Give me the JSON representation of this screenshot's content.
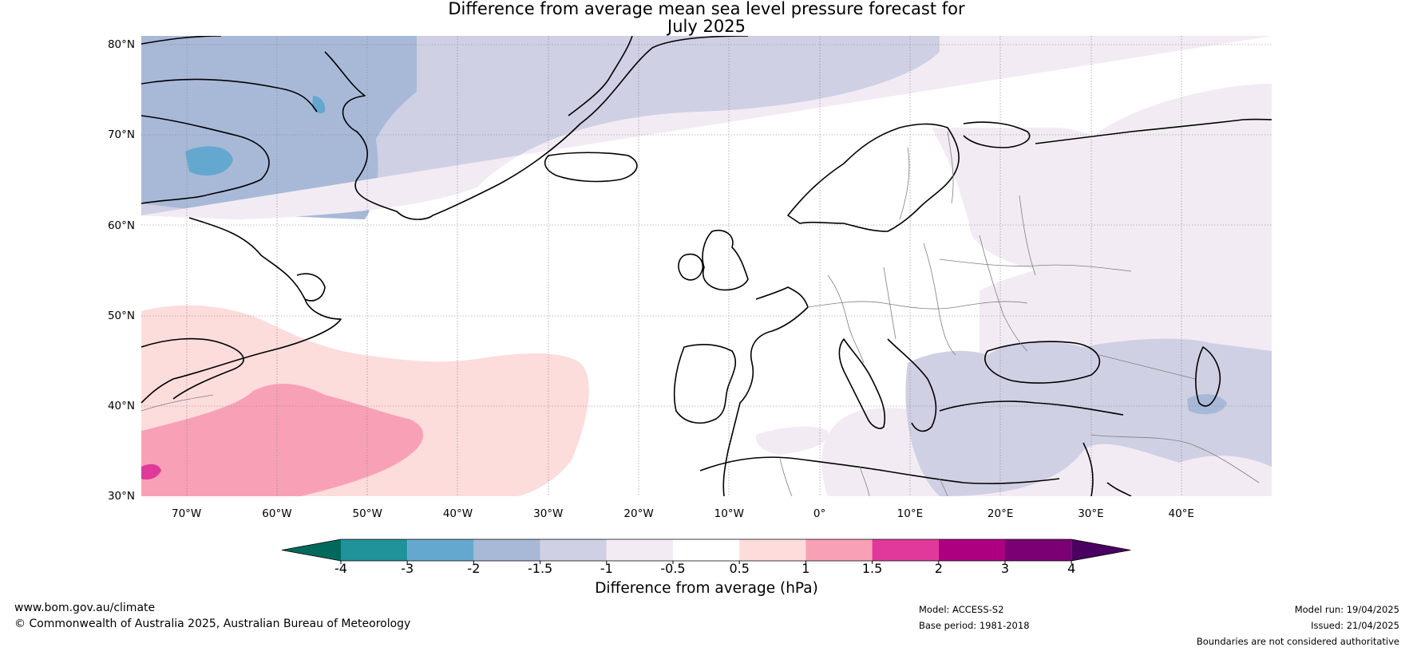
{
  "title": {
    "line1": "Difference from average mean sea level pressure forecast for",
    "line2": "July 2025"
  },
  "map": {
    "type": "forecast anomaly map",
    "region": "North Atlantic and Europe",
    "lon_range": [
      -75,
      50
    ],
    "lat_range": [
      30,
      81
    ],
    "lat_ticks": [
      {
        "value": 80,
        "label": "80°N"
      },
      {
        "value": 70,
        "label": "70°N"
      },
      {
        "value": 60,
        "label": "60°N"
      },
      {
        "value": 50,
        "label": "50°N"
      },
      {
        "value": 40,
        "label": "40°N"
      },
      {
        "value": 30,
        "label": "30°N"
      }
    ],
    "lon_ticks": [
      {
        "value": -70,
        "label": "70°W"
      },
      {
        "value": -60,
        "label": "60°W"
      },
      {
        "value": -50,
        "label": "50°W"
      },
      {
        "value": -40,
        "label": "40°W"
      },
      {
        "value": -30,
        "label": "30°W"
      },
      {
        "value": -20,
        "label": "20°W"
      },
      {
        "value": -10,
        "label": "10°W"
      },
      {
        "value": 0,
        "label": "0°"
      },
      {
        "value": 10,
        "label": "10°E"
      },
      {
        "value": 20,
        "label": "20°E"
      },
      {
        "value": 30,
        "label": "30°E"
      },
      {
        "value": 40,
        "label": "40°E"
      }
    ],
    "grid": true,
    "anomaly_regions": [
      {
        "area": "Greenland, Arctic and Canadian Arctic",
        "range_hPa": [
          -1.5,
          -1
        ]
      },
      {
        "area": "Baffin Bay and western Greenland",
        "range_hPa": [
          -2,
          -1.5
        ]
      },
      {
        "area": "Baffin Island coast",
        "range_hPa": [
          -3,
          -2
        ]
      },
      {
        "area": "Northern Scandinavia, Russia, Eastern Europe",
        "range_hPa": [
          -1,
          -0.5
        ]
      },
      {
        "area": "Eastern Mediterranean and Black Sea",
        "range_hPa": [
          -1.5,
          -1
        ]
      },
      {
        "area": "Central North Atlantic and Western Europe",
        "range_hPa": [
          -0.5,
          0.5
        ]
      },
      {
        "area": "Western subtropical North Atlantic",
        "range_hPa": [
          0.5,
          1
        ]
      },
      {
        "area": "Subtropical North Atlantic south of 40°N",
        "range_hPa": [
          1,
          1.5
        ]
      },
      {
        "area": "Far south-west corner near 32°N 75°W",
        "range_hPa": [
          1.5,
          2
        ]
      }
    ]
  },
  "colorbar": {
    "label": "Difference from average (hPa)",
    "extend": "both",
    "under_color": "#00695c",
    "over_color": "#4a0060",
    "bins": [
      {
        "lo": "-4",
        "hi": "-3",
        "color": "#20929a"
      },
      {
        "lo": "-3",
        "hi": "-2",
        "color": "#65a8cf"
      },
      {
        "lo": "-2",
        "hi": "-1.5",
        "color": "#a8b9d8"
      },
      {
        "lo": "-1.5",
        "hi": "-1",
        "color": "#cfd0e4"
      },
      {
        "lo": "-1",
        "hi": "-0.5",
        "color": "#f3ebf4"
      },
      {
        "lo": "-0.5",
        "hi": "0.5",
        "color": "#ffffff"
      },
      {
        "lo": "0.5",
        "hi": "1",
        "color": "#fddcdc"
      },
      {
        "lo": "1",
        "hi": "1.5",
        "color": "#f8a1b6"
      },
      {
        "lo": "1.5",
        "hi": "2",
        "color": "#e0399b"
      },
      {
        "lo": "2",
        "hi": "3",
        "color": "#ad0081"
      },
      {
        "lo": "3",
        "hi": "4",
        "color": "#7a0073"
      }
    ],
    "tick_labels": [
      "-4",
      "-3",
      "-2",
      "-1.5",
      "-1",
      "-0.5",
      "0.5",
      "1",
      "1.5",
      "2",
      "3",
      "4"
    ]
  },
  "footer": {
    "website": "www.bom.gov.au/climate",
    "copyright": "© Commonwealth of Australia 2025, Australian Bureau of Meteorology",
    "model": "Model: ACCESS-S2",
    "base_period": "Base period: 1981-2018",
    "model_run": "Model run: 19/04/2025",
    "issued": "Issued: 21/04/2025",
    "disclaimer": "Boundaries are not considered authoritative"
  }
}
